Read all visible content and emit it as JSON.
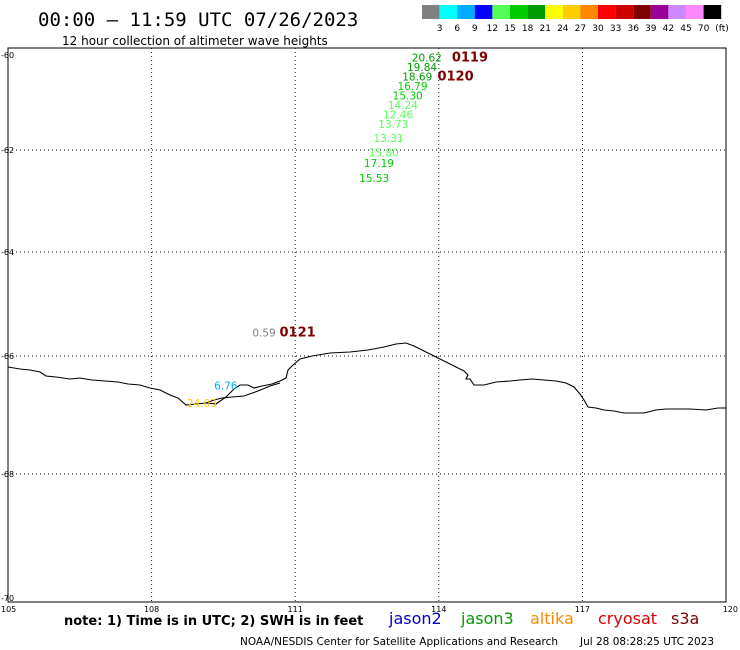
{
  "header": {
    "title": "00:00 – 11:59 UTC 07/26/2023",
    "subtitle": "12 hour collection of altimeter wave heights"
  },
  "color_scale": {
    "labels": [
      "3",
      "6",
      "9",
      "12",
      "15",
      "18",
      "21",
      "24",
      "27",
      "30",
      "33",
      "36",
      "39",
      "42",
      "45",
      "70"
    ],
    "unit": "(ft)",
    "colors": [
      "#808080",
      "#00ffff",
      "#00aaff",
      "#0000ff",
      "#55ff55",
      "#00cc00",
      "#009900",
      "#ffff00",
      "#ffcc00",
      "#ff8800",
      "#ff0000",
      "#cc0000",
      "#800000",
      "#990099",
      "#cc88ff",
      "#ff88ff",
      "#000000"
    ]
  },
  "map": {
    "lon_ticks": [
      "105",
      "108",
      "111",
      "114",
      "117",
      "120"
    ],
    "lat_ticks": [
      "-60",
      "-62",
      "-64",
      "-66",
      "-68",
      "-70"
    ]
  },
  "observations": [
    {
      "v": "20.62",
      "lon": 113.75,
      "lat": -60.05,
      "c": "#009900"
    },
    {
      "v": "19.84",
      "lon": 113.65,
      "lat": -60.25,
      "c": "#009900"
    },
    {
      "v": "18.69",
      "lon": 113.55,
      "lat": -60.45,
      "c": "#009900"
    },
    {
      "v": "16.79",
      "lon": 113.45,
      "lat": -60.65,
      "c": "#00cc00"
    },
    {
      "v": "15.30",
      "lon": 113.35,
      "lat": -60.85,
      "c": "#00cc00"
    },
    {
      "v": "14.24",
      "lon": 113.25,
      "lat": -61.05,
      "c": "#55ff55"
    },
    {
      "v": "12.46",
      "lon": 113.15,
      "lat": -61.25,
      "c": "#55ff55"
    },
    {
      "v": "13.73",
      "lon": 113.05,
      "lat": -61.45,
      "c": "#55ff55"
    },
    {
      "v": "13.31",
      "lon": 112.95,
      "lat": -61.75,
      "c": "#55ff55"
    },
    {
      "v": "15.80",
      "lon": 112.85,
      "lat": -62.05,
      "c": "#55ff55"
    },
    {
      "v": "17.19",
      "lon": 112.75,
      "lat": -62.25,
      "c": "#00cc00"
    },
    {
      "v": "15.53",
      "lon": 112.65,
      "lat": -62.55,
      "c": "#00cc00"
    },
    {
      "v": "0.59",
      "lon": 110.35,
      "lat": -65.55,
      "c": "#808080"
    },
    {
      "v": "6.76",
      "lon": 109.55,
      "lat": -66.5,
      "c": "#00aaff"
    },
    {
      "v": "24.03",
      "lon": 109.05,
      "lat": -66.8,
      "c": "#ffcc00"
    }
  ],
  "passes": [
    {
      "label": "0119",
      "lon": 114.65,
      "lat": -60.05
    },
    {
      "label": "0120",
      "lon": 114.35,
      "lat": -60.45
    },
    {
      "label": "0121",
      "lon": 111.05,
      "lat": -65.55
    }
  ],
  "note": "note: 1) Time is in UTC; 2) SWH is in feet",
  "satellites": [
    {
      "name": "jason2",
      "color": "#0000cc"
    },
    {
      "name": "jason3",
      "color": "#009900"
    },
    {
      "name": "altika",
      "color": "#ff8800"
    },
    {
      "name": "cryosat",
      "color": "#dd0000"
    },
    {
      "name": "s3a",
      "color": "#800000"
    }
  ],
  "footer": {
    "credit": "NOAA/NESDIS Center for Satellite Applications and Research",
    "timestamp": "Jul 28 08:28:25 UTC 2023"
  }
}
